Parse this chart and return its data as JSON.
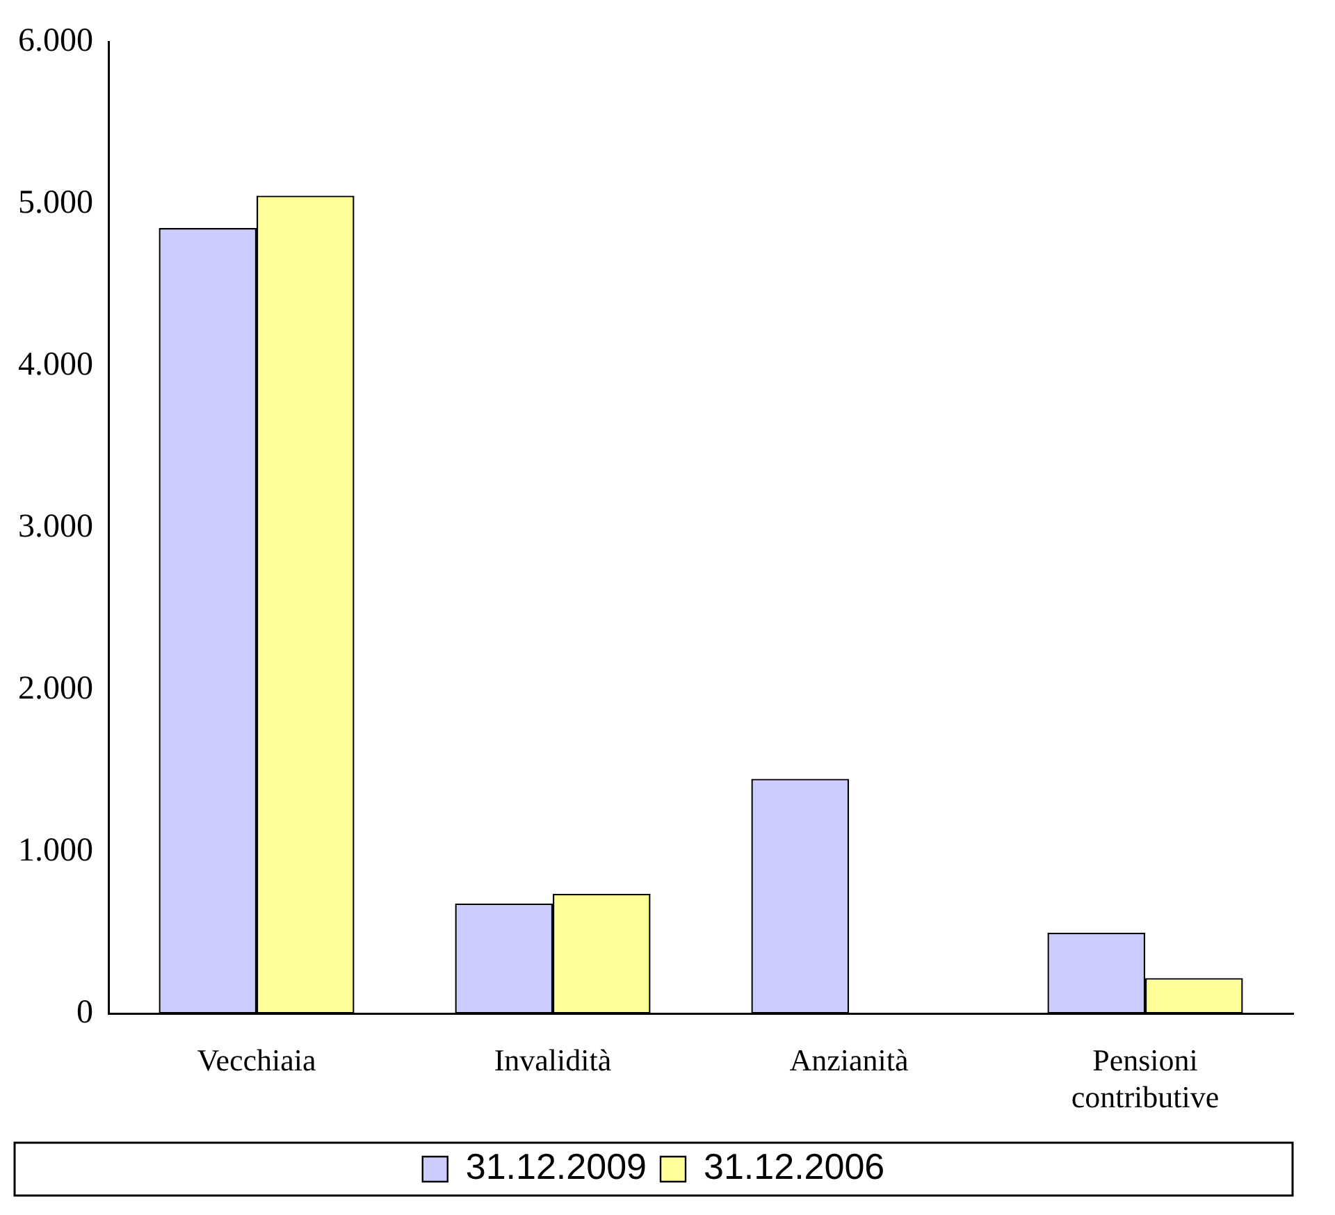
{
  "chart_data": {
    "type": "bar",
    "categories": [
      "Vecchiaia",
      "Invalidità",
      "Anzianità",
      "Pensioni contributive"
    ],
    "series": [
      {
        "name": "31.12.2009",
        "color": "#ccccff",
        "values": [
          4850,
          680,
          1450,
          500
        ]
      },
      {
        "name": "31.12.2006",
        "color": "#ffff99",
        "values": [
          5050,
          740,
          null,
          220
        ]
      }
    ],
    "ylim": [
      0,
      6000
    ],
    "yticks": [
      {
        "value": 0,
        "label": "0"
      },
      {
        "value": 1000,
        "label": "1.000"
      },
      {
        "value": 2000,
        "label": "2.000"
      },
      {
        "value": 3000,
        "label": "3.000"
      },
      {
        "value": 4000,
        "label": "4.000"
      },
      {
        "value": 5000,
        "label": "5.000"
      },
      {
        "value": 6000,
        "label": "6.000"
      }
    ],
    "grid": false,
    "legend": "bottom"
  }
}
